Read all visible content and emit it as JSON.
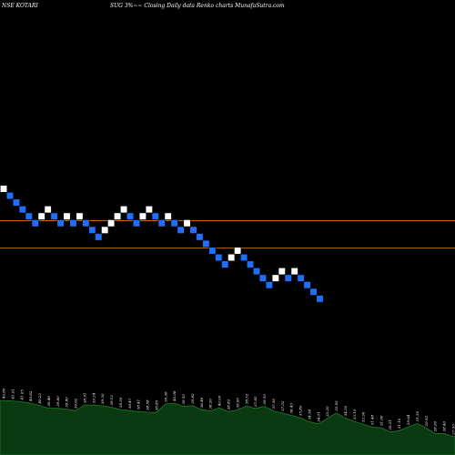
{
  "header": {
    "left": "NSE KOTARI",
    "right": "SUG 3%~~  Closing Daily data  Renko  charts MunafaSutra.com"
  },
  "colors": {
    "background": "#000000",
    "up_brick": "#ffffff",
    "down_brick": "#1f6fff",
    "brick_border": "#000000",
    "level_line": "#c06a0a",
    "volume_fill": "#0b3a12",
    "volume_line": "#1f7a2a"
  },
  "chart_data": {
    "type": "renko",
    "bricks": [
      {
        "direction": "up",
        "level": 44.0
      },
      {
        "direction": "down",
        "level": 43.0
      },
      {
        "direction": "down",
        "level": 42.0
      },
      {
        "direction": "down",
        "level": 41.0
      },
      {
        "direction": "down",
        "level": 40.0
      },
      {
        "direction": "down",
        "level": 39.0
      },
      {
        "direction": "up",
        "level": 40.0
      },
      {
        "direction": "up",
        "level": 41.0
      },
      {
        "direction": "down",
        "level": 40.0
      },
      {
        "direction": "down",
        "level": 39.0
      },
      {
        "direction": "up",
        "level": 40.0
      },
      {
        "direction": "down",
        "level": 39.0
      },
      {
        "direction": "up",
        "level": 40.0
      },
      {
        "direction": "down",
        "level": 39.0
      },
      {
        "direction": "down",
        "level": 38.0
      },
      {
        "direction": "down",
        "level": 37.0
      },
      {
        "direction": "up",
        "level": 38.0
      },
      {
        "direction": "up",
        "level": 39.0
      },
      {
        "direction": "up",
        "level": 40.0
      },
      {
        "direction": "up",
        "level": 41.0
      },
      {
        "direction": "down",
        "level": 40.0
      },
      {
        "direction": "down",
        "level": 39.0
      },
      {
        "direction": "up",
        "level": 40.0
      },
      {
        "direction": "up",
        "level": 41.0
      },
      {
        "direction": "down",
        "level": 40.0
      },
      {
        "direction": "down",
        "level": 39.0
      },
      {
        "direction": "up",
        "level": 40.0
      },
      {
        "direction": "down",
        "level": 39.0
      },
      {
        "direction": "down",
        "level": 38.0
      },
      {
        "direction": "up",
        "level": 39.0
      },
      {
        "direction": "down",
        "level": 38.0
      },
      {
        "direction": "down",
        "level": 37.0
      },
      {
        "direction": "down",
        "level": 36.0
      },
      {
        "direction": "down",
        "level": 35.0
      },
      {
        "direction": "down",
        "level": 34.0
      },
      {
        "direction": "down",
        "level": 33.0
      },
      {
        "direction": "up",
        "level": 34.0
      },
      {
        "direction": "up",
        "level": 35.0
      },
      {
        "direction": "down",
        "level": 34.0
      },
      {
        "direction": "down",
        "level": 33.0
      },
      {
        "direction": "down",
        "level": 32.0
      },
      {
        "direction": "down",
        "level": 31.0
      },
      {
        "direction": "down",
        "level": 30.0
      },
      {
        "direction": "up",
        "level": 31.0
      },
      {
        "direction": "up",
        "level": 32.0
      },
      {
        "direction": "down",
        "level": 31.0
      },
      {
        "direction": "up",
        "level": 32.0
      },
      {
        "direction": "down",
        "level": 31.0
      },
      {
        "direction": "down",
        "level": 30.0
      },
      {
        "direction": "down",
        "level": 29.0
      },
      {
        "direction": "down",
        "level": 28.0
      }
    ],
    "horizontal_levels": [
      39.0,
      35.0
    ],
    "volume_labels": [
      "40.80",
      "41.01",
      "41.05",
      "40.82",
      "40.23",
      "39.46",
      "39.80",
      "39.80",
      "39.62",
      "38.91",
      "39.24",
      "39.30",
      "39.12",
      "38.50",
      "38.47",
      "38.41",
      "38.58",
      "38.85",
      "39.36",
      "40.08",
      "39.10",
      "39.82",
      "38.46",
      "38.26",
      "40.00",
      "38.82",
      "39.90",
      "38.52",
      "37.82",
      "39.10",
      "37.56",
      "37.02",
      "36.43",
      "35.80",
      "34.54",
      "34.01",
      "33.20",
      "35.95",
      "34.20",
      "33.10",
      "32.36",
      "31.48",
      "31.60",
      "30.21",
      "31.10",
      "29.64",
      "31.50",
      "29.92",
      "28.00",
      "28.40",
      "27.50"
    ]
  }
}
